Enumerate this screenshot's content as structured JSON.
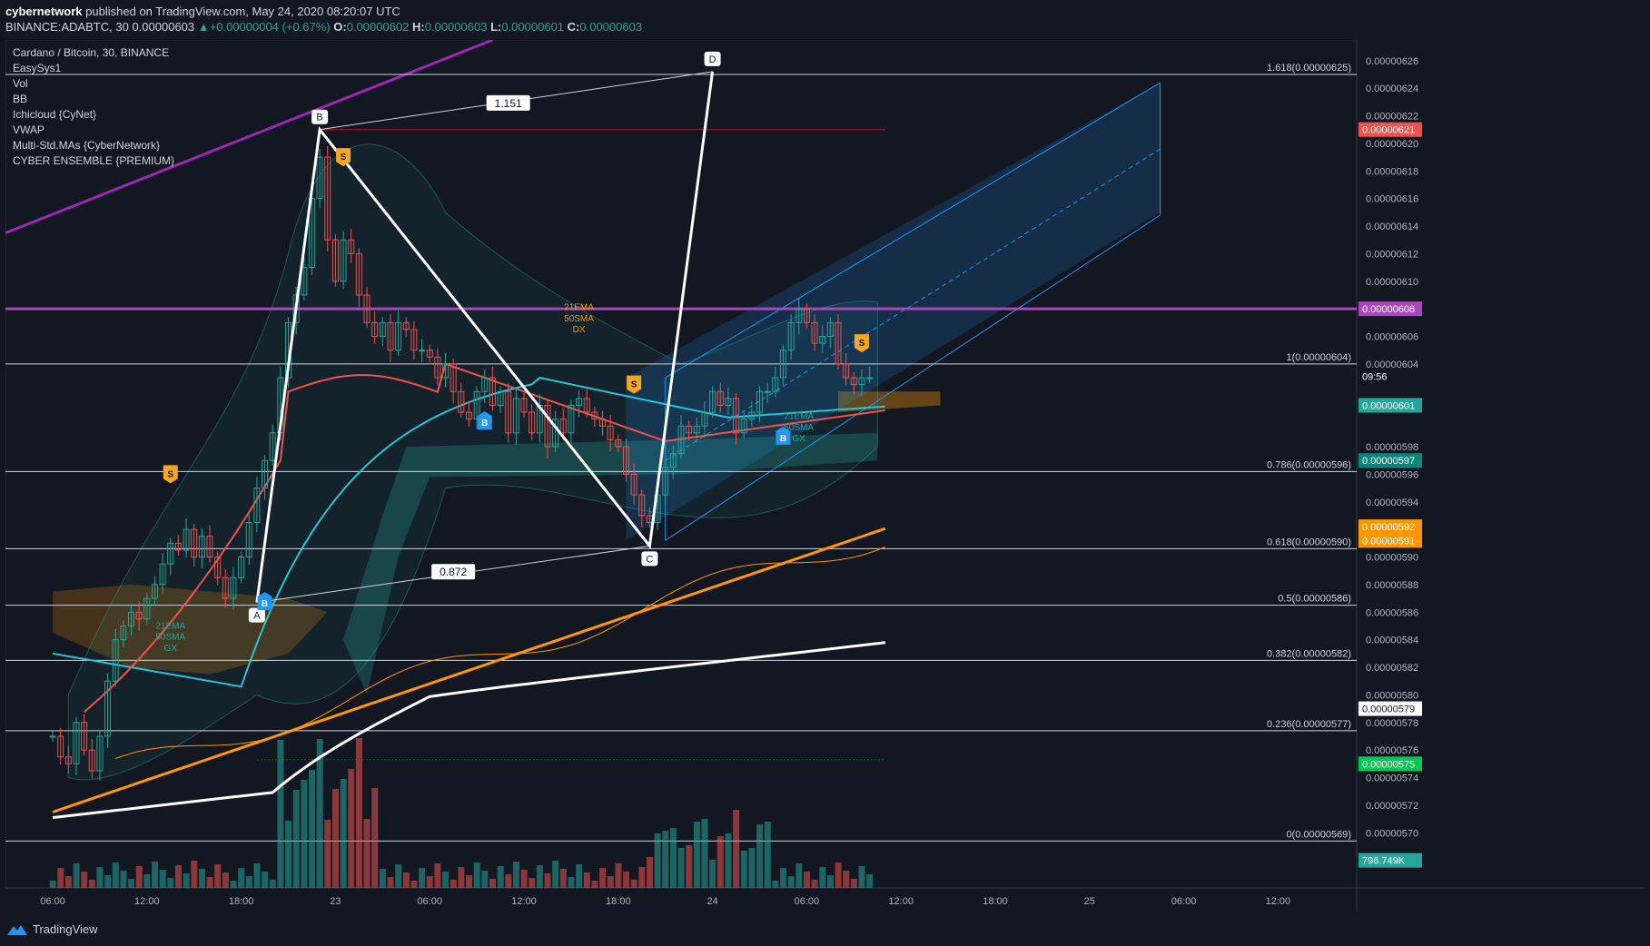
{
  "header": {
    "publisher": "cybernetwork",
    "published_text": "published on TradingView.com, May 24, 2020 08:20:07 UTC",
    "symbol": "BINANCE:ADABTC, 30",
    "price": "0.00000603",
    "change_arrow": "▲",
    "change": "+0.00000004 (+0.67%)",
    "o_label": "O:",
    "o": "0.00000602",
    "h_label": "H:",
    "h": "0.00000603",
    "l_label": "L:",
    "l": "0.00000601",
    "c_label": "C:",
    "c": "0.00000603"
  },
  "legend": {
    "title": "Cardano / Bitcoin, 30, BINANCE",
    "indicators": [
      "EasySys1",
      "Vol",
      "BB",
      "Ichicloud {CyNet}",
      "VWAP",
      "Multi-Std.MAs {CyberNetwork}",
      "CYBER ENSEMBLE {PREMIUM}"
    ]
  },
  "footer": {
    "brand": "TradingView"
  },
  "colors": {
    "background": "#131722",
    "up": "#26a69a",
    "down": "#ef5350",
    "fib_line": "#d1d4dc",
    "purple_line": "#9c27b0",
    "channel": "#2196f3",
    "ema_orange": "#ff9800",
    "ma_white": "#ffffff",
    "cyan_ma": "#26c6da",
    "red_ma": "#ef5350"
  },
  "chart_data": {
    "type": "candlestick",
    "symbol": "Cardano / Bitcoin, 30, BINANCE",
    "ylim": [
      5.66e-06,
      6.275e-06
    ],
    "y_ticks": [
      "0.00000626",
      "0.00000624",
      "0.00000622",
      "0.00000620",
      "0.00000618",
      "0.00000616",
      "0.00000614",
      "0.00000612",
      "0.00000610",
      "0.00000606",
      "0.00000604",
      "0.00000598",
      "0.00000596",
      "0.00000594",
      "0.00000590",
      "0.00000588",
      "0.00000586",
      "0.00000584",
      "0.00000582",
      "0.00000580",
      "0.00000578",
      "0.00000576",
      "0.00000574",
      "0.00000572",
      "0.00000570"
    ],
    "y_tick_values": [
      6.26,
      6.24,
      6.22,
      6.2,
      6.18,
      6.16,
      6.14,
      6.12,
      6.1,
      6.06,
      6.04,
      5.98,
      5.96,
      5.94,
      5.9,
      5.88,
      5.86,
      5.84,
      5.82,
      5.8,
      5.78,
      5.76,
      5.74,
      5.72,
      5.7
    ],
    "x_ticks": [
      "06:00",
      "12:00",
      "18:00",
      "23",
      "06:00",
      "12:00",
      "18:00",
      "24",
      "06:00",
      "12:00",
      "18:00",
      "25",
      "06:00",
      "12:00"
    ],
    "x_tick_index": [
      0,
      12,
      24,
      36,
      48,
      60,
      72,
      84,
      96,
      108,
      120,
      132,
      144,
      156
    ],
    "price_tags": [
      {
        "label": "0.00000621",
        "value": 6.21,
        "color": "#ef5350"
      },
      {
        "label": "0.00000608",
        "value": 6.08,
        "color": "#ab47bc"
      },
      {
        "label": "09:56",
        "value": 6.031,
        "color": "#131722"
      },
      {
        "label": "0.00000601",
        "value": 6.01,
        "color": "#26a69a"
      },
      {
        "label": "0.00000597",
        "value": 5.97,
        "color": "#00897b"
      },
      {
        "label": "0.00000592",
        "value": 5.922,
        "color": "#ff9800"
      },
      {
        "label": "0.00000591",
        "value": 5.912,
        "color": "#ff9800"
      },
      {
        "label": "0.00000579",
        "value": 5.79,
        "color": "#ffffff"
      },
      {
        "label": "0.00000575",
        "value": 5.75,
        "color": "#00c853"
      },
      {
        "label": "796.749K",
        "value": 5.68,
        "color": "#26a69a"
      }
    ],
    "fib_levels": [
      {
        "label": "1.618(0.00000625)",
        "value": 6.25
      },
      {
        "label": "1(0.00000604)",
        "value": 6.04
      },
      {
        "label": "0.786(0.00000596)",
        "value": 5.962
      },
      {
        "label": "0.618(0.00000590)",
        "value": 5.906
      },
      {
        "label": "0.5(0.00000586)",
        "value": 5.865
      },
      {
        "label": "0.382(0.00000582)",
        "value": 5.825
      },
      {
        "label": "0.236(0.00000577)",
        "value": 5.774
      },
      {
        "label": "0(0.00000569)",
        "value": 5.694
      }
    ],
    "abcd": {
      "points": [
        {
          "label": "A",
          "i": 26,
          "v": 5.867
        },
        {
          "label": "B",
          "i": 34,
          "v": 6.21
        },
        {
          "label": "C",
          "i": 76,
          "v": 5.908
        },
        {
          "label": "D",
          "i": 84,
          "v": 6.252
        }
      ],
      "ratios": [
        {
          "label": "1.151",
          "i": 58,
          "v": 6.229
        },
        {
          "label": "0.872",
          "i": 51,
          "v": 5.889
        }
      ]
    },
    "signals": {
      "sell": [
        {
          "i": 15,
          "v": 5.96
        },
        {
          "i": 37,
          "v": 6.19
        },
        {
          "i": 74,
          "v": 6.025
        },
        {
          "i": 103,
          "v": 6.055
        }
      ],
      "buy": [
        {
          "i": 27,
          "v": 5.868
        },
        {
          "i": 55,
          "v": 5.999
        },
        {
          "i": 93,
          "v": 5.988
        }
      ]
    },
    "annotations": [
      {
        "text": "21EMA",
        "i": 15,
        "v": 5.848,
        "color": "#26a69a"
      },
      {
        "text": "50SMA",
        "i": 15,
        "v": 5.84,
        "color": "#26a69a"
      },
      {
        "text": "GX",
        "i": 15,
        "v": 5.832,
        "color": "#26a69a"
      },
      {
        "text": "21EMA",
        "i": 67,
        "v": 6.079,
        "color": "#ff9800"
      },
      {
        "text": "50SMA",
        "i": 67,
        "v": 6.071,
        "color": "#ff9800"
      },
      {
        "text": "DX",
        "i": 67,
        "v": 6.063,
        "color": "#ff9800"
      },
      {
        "text": "21EMA",
        "i": 95,
        "v": 6.0,
        "color": "#26a69a"
      },
      {
        "text": "50SMA",
        "i": 95,
        "v": 5.992,
        "color": "#26a69a"
      },
      {
        "text": "GX",
        "i": 95,
        "v": 5.984,
        "color": "#26a69a"
      }
    ],
    "candles_close": [
      5.77,
      5.755,
      5.75,
      5.78,
      5.76,
      5.745,
      5.77,
      5.81,
      5.84,
      5.85,
      5.86,
      5.855,
      5.87,
      5.88,
      5.895,
      5.91,
      5.905,
      5.92,
      5.9,
      5.915,
      5.9,
      5.885,
      5.87,
      5.885,
      5.9,
      5.925,
      5.95,
      5.97,
      5.99,
      6.03,
      6.07,
      6.09,
      6.11,
      6.16,
      6.19,
      6.13,
      6.1,
      6.13,
      6.12,
      6.09,
      6.07,
      6.06,
      6.07,
      6.05,
      6.07,
      6.065,
      6.05,
      6.05,
      6.045,
      6.03,
      6.04,
      6.02,
      6.005,
      6.0,
      6.02,
      6.03,
      6.01,
      6.02,
      5.99,
      6.015,
      6.005,
      5.99,
      6.01,
      5.98,
      6.0,
      5.99,
      6.01,
      6.015,
      6.005,
      6.0,
      5.995,
      5.985,
      5.98,
      5.96,
      5.945,
      5.93,
      5.925,
      5.945,
      5.965,
      5.975,
      5.995,
      5.99,
      5.995,
      6.005,
      6.02,
      6.01,
      6.015,
      5.99,
      6.0,
      6.005,
      6.02,
      6.02,
      6.03,
      6.05,
      6.07,
      6.08,
      6.07,
      6.055,
      6.06,
      6.07,
      6.04,
      6.03,
      6.025,
      6.03,
      6.03
    ]
  }
}
